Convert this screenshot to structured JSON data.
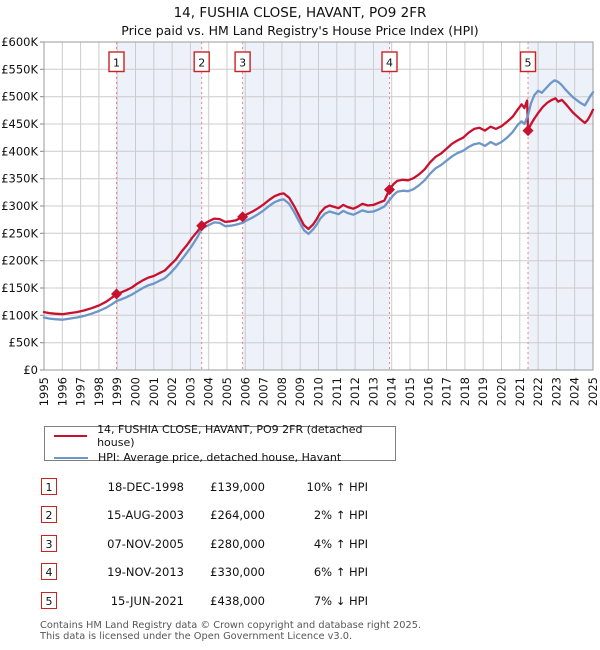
{
  "header": {
    "title": "14, FUSHIA CLOSE, HAVANT, PO9 2FR",
    "subtitle": "Price paid vs. HM Land Registry's House Price Index (HPI)"
  },
  "chart_data": {
    "type": "line",
    "title": "14, FUSHIA CLOSE, HAVANT, PO9 2FR",
    "xlabel": "",
    "ylabel": "",
    "x_axis": {
      "min": 1995,
      "max": 2025,
      "years": [
        1995,
        1996,
        1997,
        1998,
        1999,
        2000,
        2001,
        2002,
        2003,
        2004,
        2005,
        2006,
        2007,
        2008,
        2009,
        2010,
        2011,
        2012,
        2013,
        2014,
        2015,
        2016,
        2017,
        2018,
        2019,
        2020,
        2021,
        2022,
        2023,
        2024,
        2025
      ]
    },
    "y_axis": {
      "min_k": 0,
      "max_k": 600,
      "ticks": [
        {
          "value_k": 0,
          "label": "£0"
        },
        {
          "value_k": 50,
          "label": "£50K"
        },
        {
          "value_k": 100,
          "label": "£100K"
        },
        {
          "value_k": 150,
          "label": "£150K"
        },
        {
          "value_k": 200,
          "label": "£200K"
        },
        {
          "value_k": 250,
          "label": "£250K"
        },
        {
          "value_k": 300,
          "label": "£300K"
        },
        {
          "value_k": 350,
          "label": "£350K"
        },
        {
          "value_k": 400,
          "label": "£400K"
        },
        {
          "value_k": 450,
          "label": "£450K"
        },
        {
          "value_k": 500,
          "label": "£500K"
        },
        {
          "value_k": 550,
          "label": "£550K"
        },
        {
          "value_k": 600,
          "label": "£600K"
        }
      ]
    },
    "grid": true,
    "legend_position": "below",
    "colors": {
      "price_paid": "#c8112e",
      "hpi": "#6e96c8",
      "marker_line": "#f38080",
      "band": "#edf1fa",
      "gridline": "#cccccc",
      "plot_border": "#9a9a9a"
    },
    "shaded_bands": [
      [
        1998.96,
        2003.62
      ],
      [
        2005.85,
        2013.88
      ],
      [
        2021.45,
        2025.0
      ]
    ],
    "sale_markers": [
      {
        "label": "1",
        "x": 1998.96,
        "price_k": 139
      },
      {
        "label": "2",
        "x": 2003.62,
        "price_k": 264
      },
      {
        "label": "3",
        "x": 2005.85,
        "price_k": 280
      },
      {
        "label": "4",
        "x": 2013.88,
        "price_k": 330
      },
      {
        "label": "5",
        "x": 2021.45,
        "price_k": 438
      }
    ],
    "series": [
      {
        "name": "14, FUSHIA CLOSE, HAVANT, PO9 2FR (detached house)",
        "color": "#c8112e",
        "width": 2.3,
        "points": [
          [
            1995.0,
            106
          ],
          [
            1995.3,
            104
          ],
          [
            1995.6,
            103
          ],
          [
            1996.0,
            102
          ],
          [
            1996.4,
            104
          ],
          [
            1996.8,
            106
          ],
          [
            1997.2,
            109
          ],
          [
            1997.6,
            113
          ],
          [
            1998.0,
            118
          ],
          [
            1998.4,
            125
          ],
          [
            1998.7,
            132
          ],
          [
            1998.96,
            139
          ],
          [
            1999.2,
            142
          ],
          [
            1999.5,
            146
          ],
          [
            1999.8,
            151
          ],
          [
            2000.1,
            158
          ],
          [
            2000.4,
            164
          ],
          [
            2000.7,
            169
          ],
          [
            2001.0,
            172
          ],
          [
            2001.3,
            177
          ],
          [
            2001.6,
            182
          ],
          [
            2001.9,
            192
          ],
          [
            2002.2,
            202
          ],
          [
            2002.5,
            216
          ],
          [
            2002.8,
            228
          ],
          [
            2003.1,
            242
          ],
          [
            2003.4,
            254
          ],
          [
            2003.62,
            264
          ],
          [
            2003.8,
            268
          ],
          [
            2004.0,
            272
          ],
          [
            2004.3,
            277
          ],
          [
            2004.6,
            276
          ],
          [
            2004.9,
            271
          ],
          [
            2005.2,
            272
          ],
          [
            2005.5,
            274
          ],
          [
            2005.85,
            280
          ],
          [
            2006.1,
            285
          ],
          [
            2006.4,
            290
          ],
          [
            2006.7,
            296
          ],
          [
            2007.0,
            303
          ],
          [
            2007.3,
            311
          ],
          [
            2007.6,
            318
          ],
          [
            2007.9,
            322
          ],
          [
            2008.1,
            323
          ],
          [
            2008.4,
            315
          ],
          [
            2008.7,
            298
          ],
          [
            2009.0,
            278
          ],
          [
            2009.2,
            265
          ],
          [
            2009.45,
            258
          ],
          [
            2009.7,
            266
          ],
          [
            2009.9,
            276
          ],
          [
            2010.1,
            288
          ],
          [
            2010.35,
            297
          ],
          [
            2010.6,
            301
          ],
          [
            2010.9,
            298
          ],
          [
            2011.1,
            296
          ],
          [
            2011.35,
            302
          ],
          [
            2011.6,
            298
          ],
          [
            2011.9,
            295
          ],
          [
            2012.1,
            298
          ],
          [
            2012.4,
            304
          ],
          [
            2012.7,
            301
          ],
          [
            2013.0,
            302
          ],
          [
            2013.3,
            306
          ],
          [
            2013.6,
            310
          ],
          [
            2013.88,
            330
          ],
          [
            2014.1,
            340
          ],
          [
            2014.3,
            346
          ],
          [
            2014.6,
            348
          ],
          [
            2014.9,
            347
          ],
          [
            2015.2,
            351
          ],
          [
            2015.5,
            358
          ],
          [
            2015.8,
            367
          ],
          [
            2016.1,
            380
          ],
          [
            2016.4,
            390
          ],
          [
            2016.7,
            396
          ],
          [
            2017.0,
            405
          ],
          [
            2017.3,
            414
          ],
          [
            2017.6,
            420
          ],
          [
            2017.9,
            425
          ],
          [
            2018.2,
            434
          ],
          [
            2018.5,
            441
          ],
          [
            2018.8,
            443
          ],
          [
            2019.1,
            438
          ],
          [
            2019.4,
            445
          ],
          [
            2019.7,
            441
          ],
          [
            2020.0,
            446
          ],
          [
            2020.3,
            454
          ],
          [
            2020.6,
            463
          ],
          [
            2020.9,
            477
          ],
          [
            2021.1,
            486
          ],
          [
            2021.25,
            479
          ],
          [
            2021.4,
            493
          ],
          [
            2021.45,
            438
          ],
          [
            2021.6,
            449
          ],
          [
            2021.8,
            460
          ],
          [
            2022.0,
            470
          ],
          [
            2022.25,
            481
          ],
          [
            2022.5,
            489
          ],
          [
            2022.75,
            494
          ],
          [
            2022.95,
            497
          ],
          [
            2023.1,
            491
          ],
          [
            2023.3,
            494
          ],
          [
            2023.5,
            487
          ],
          [
            2023.7,
            479
          ],
          [
            2023.9,
            471
          ],
          [
            2024.1,
            465
          ],
          [
            2024.3,
            459
          ],
          [
            2024.55,
            452
          ],
          [
            2024.7,
            457
          ],
          [
            2024.85,
            466
          ],
          [
            2025.0,
            476
          ]
        ]
      },
      {
        "name": "HPI: Average price, detached house, Havant",
        "color": "#6e96c8",
        "width": 2.3,
        "points": [
          [
            1995.0,
            96
          ],
          [
            1995.3,
            94
          ],
          [
            1995.6,
            93
          ],
          [
            1996.0,
            92
          ],
          [
            1996.4,
            94
          ],
          [
            1996.8,
            96
          ],
          [
            1997.2,
            99
          ],
          [
            1997.6,
            103
          ],
          [
            1998.0,
            108
          ],
          [
            1998.4,
            114
          ],
          [
            1998.7,
            120
          ],
          [
            1998.96,
            126
          ],
          [
            1999.2,
            129
          ],
          [
            1999.5,
            133
          ],
          [
            1999.8,
            138
          ],
          [
            2000.1,
            144
          ],
          [
            2000.4,
            150
          ],
          [
            2000.7,
            155
          ],
          [
            2001.0,
            158
          ],
          [
            2001.3,
            163
          ],
          [
            2001.6,
            168
          ],
          [
            2001.9,
            177
          ],
          [
            2002.2,
            188
          ],
          [
            2002.5,
            201
          ],
          [
            2002.8,
            214
          ],
          [
            2003.1,
            228
          ],
          [
            2003.4,
            244
          ],
          [
            2003.62,
            259
          ],
          [
            2003.8,
            262
          ],
          [
            2004.0,
            265
          ],
          [
            2004.3,
            270
          ],
          [
            2004.6,
            269
          ],
          [
            2004.9,
            263
          ],
          [
            2005.2,
            264
          ],
          [
            2005.5,
            266
          ],
          [
            2005.85,
            269
          ],
          [
            2006.1,
            274
          ],
          [
            2006.4,
            279
          ],
          [
            2006.7,
            285
          ],
          [
            2007.0,
            292
          ],
          [
            2007.3,
            300
          ],
          [
            2007.6,
            307
          ],
          [
            2007.9,
            311
          ],
          [
            2008.1,
            312
          ],
          [
            2008.4,
            304
          ],
          [
            2008.7,
            287
          ],
          [
            2009.0,
            268
          ],
          [
            2009.2,
            256
          ],
          [
            2009.45,
            249
          ],
          [
            2009.7,
            257
          ],
          [
            2009.9,
            266
          ],
          [
            2010.1,
            277
          ],
          [
            2010.35,
            286
          ],
          [
            2010.6,
            290
          ],
          [
            2010.9,
            287
          ],
          [
            2011.1,
            285
          ],
          [
            2011.35,
            291
          ],
          [
            2011.6,
            287
          ],
          [
            2011.9,
            284
          ],
          [
            2012.1,
            287
          ],
          [
            2012.4,
            292
          ],
          [
            2012.7,
            289
          ],
          [
            2013.0,
            290
          ],
          [
            2013.3,
            294
          ],
          [
            2013.6,
            299
          ],
          [
            2013.88,
            311
          ],
          [
            2014.1,
            320
          ],
          [
            2014.3,
            326
          ],
          [
            2014.6,
            328
          ],
          [
            2014.9,
            327
          ],
          [
            2015.2,
            331
          ],
          [
            2015.5,
            338
          ],
          [
            2015.8,
            347
          ],
          [
            2016.1,
            359
          ],
          [
            2016.4,
            369
          ],
          [
            2016.7,
            375
          ],
          [
            2017.0,
            383
          ],
          [
            2017.3,
            391
          ],
          [
            2017.6,
            397
          ],
          [
            2017.9,
            401
          ],
          [
            2018.2,
            408
          ],
          [
            2018.5,
            413
          ],
          [
            2018.8,
            415
          ],
          [
            2019.1,
            410
          ],
          [
            2019.4,
            417
          ],
          [
            2019.7,
            412
          ],
          [
            2020.0,
            417
          ],
          [
            2020.3,
            425
          ],
          [
            2020.6,
            435
          ],
          [
            2020.9,
            449
          ],
          [
            2021.1,
            455
          ],
          [
            2021.25,
            450
          ],
          [
            2021.45,
            466
          ],
          [
            2021.6,
            487
          ],
          [
            2021.8,
            503
          ],
          [
            2022.0,
            511
          ],
          [
            2022.2,
            507
          ],
          [
            2022.45,
            516
          ],
          [
            2022.7,
            525
          ],
          [
            2022.9,
            530
          ],
          [
            2023.1,
            527
          ],
          [
            2023.3,
            521
          ],
          [
            2023.5,
            513
          ],
          [
            2023.7,
            506
          ],
          [
            2023.9,
            499
          ],
          [
            2024.1,
            494
          ],
          [
            2024.3,
            489
          ],
          [
            2024.55,
            484
          ],
          [
            2024.7,
            492
          ],
          [
            2024.85,
            501
          ],
          [
            2025.0,
            508
          ]
        ]
      }
    ]
  },
  "legend": {
    "items": [
      {
        "label": "14, FUSHIA CLOSE, HAVANT, PO9 2FR (detached house)",
        "color": "#c8112e"
      },
      {
        "label": "HPI: Average price, detached house, Havant",
        "color": "#6e96c8"
      }
    ]
  },
  "table": {
    "rows": [
      {
        "num": "1",
        "date": "18-DEC-1998",
        "price": "£139,000",
        "hpi": "10% ↑ HPI"
      },
      {
        "num": "2",
        "date": "15-AUG-2003",
        "price": "£264,000",
        "hpi": "2% ↑ HPI"
      },
      {
        "num": "3",
        "date": "07-NOV-2005",
        "price": "£280,000",
        "hpi": "4% ↑ HPI"
      },
      {
        "num": "4",
        "date": "19-NOV-2013",
        "price": "£330,000",
        "hpi": "6% ↑ HPI"
      },
      {
        "num": "5",
        "date": "15-JUN-2021",
        "price": "£438,000",
        "hpi": "7% ↓ HPI"
      }
    ]
  },
  "footer": {
    "line1": "Contains HM Land Registry data © Crown copyright and database right 2025.",
    "line2": "This data is licensed under the Open Government Licence v3.0."
  }
}
